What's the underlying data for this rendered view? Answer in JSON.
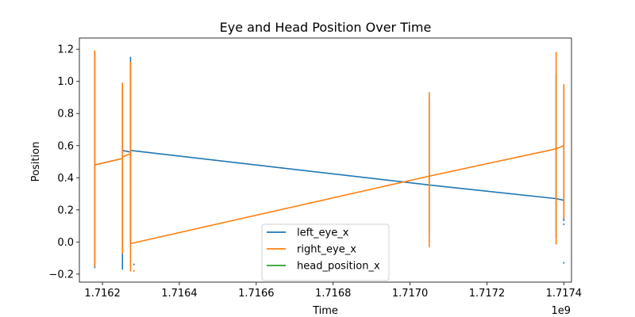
{
  "chart_data": {
    "type": "line",
    "title": "Eye and Head Position Over Time",
    "xlabel": "Time",
    "ylabel": "Position",
    "x_offset_label": "1e9",
    "xlim": [
      1.71614,
      1.71742
    ],
    "ylim": [
      -0.25,
      1.27
    ],
    "x_ticks": [
      {
        "value": 1.7162,
        "label": "1.7162"
      },
      {
        "value": 1.7164,
        "label": "1.7164"
      },
      {
        "value": 1.7166,
        "label": "1.7166"
      },
      {
        "value": 1.7168,
        "label": "1.7168"
      },
      {
        "value": 1.717,
        "label": "1.7170"
      },
      {
        "value": 1.7172,
        "label": "1.7172"
      },
      {
        "value": 1.7174,
        "label": "1.7174"
      }
    ],
    "y_ticks": [
      {
        "value": -0.2,
        "label": "−0.2"
      },
      {
        "value": 0.0,
        "label": "0.0"
      },
      {
        "value": 0.2,
        "label": "0.2"
      },
      {
        "value": 0.4,
        "label": "0.4"
      },
      {
        "value": 0.6,
        "label": "0.6"
      },
      {
        "value": 0.8,
        "label": "0.8"
      },
      {
        "value": 1.0,
        "label": "1.0"
      },
      {
        "value": 1.2,
        "label": "1.2"
      }
    ],
    "grid": false,
    "legend_position": "bottom-center",
    "series": [
      {
        "name": "left_eye_x",
        "color": "#1f77b4",
        "points": [
          [
            1.71618,
            0.48
          ],
          [
            1.71618,
            -0.16
          ],
          [
            1.71618,
            1.18
          ],
          [
            1.71618,
            -0.1
          ],
          [
            1.71618,
            0.48
          ],
          [
            1.716252,
            0.52
          ],
          [
            1.716252,
            -0.17
          ],
          [
            1.716252,
            0.98
          ],
          [
            1.716252,
            0.57
          ],
          [
            1.716273,
            0.56
          ],
          [
            1.716273,
            1.15
          ],
          [
            1.716273,
            0.0
          ],
          [
            1.716273,
            0.57
          ],
          [
            1.71705,
            0.355
          ],
          [
            1.71705,
            0.05
          ],
          [
            1.71705,
            0.88
          ],
          [
            1.71705,
            0.355
          ],
          [
            1.71738,
            0.27
          ],
          [
            1.71738,
            0.03
          ],
          [
            1.71738,
            1.05
          ],
          [
            1.71738,
            0.27
          ],
          [
            1.7174,
            0.26
          ],
          [
            1.7174,
            0.15
          ],
          [
            1.7174,
            0.97
          ],
          [
            1.7174,
            0.13
          ]
        ]
      },
      {
        "name": "right_eye_x",
        "color": "#ff7f0e",
        "points": [
          [
            1.71618,
            0.48
          ],
          [
            1.71618,
            -0.15
          ],
          [
            1.71618,
            1.19
          ],
          [
            1.71618,
            -0.08
          ],
          [
            1.71618,
            0.48
          ],
          [
            1.716252,
            0.52
          ],
          [
            1.716252,
            -0.07
          ],
          [
            1.716252,
            0.99
          ],
          [
            1.716252,
            0.53
          ],
          [
            1.716273,
            0.55
          ],
          [
            1.716273,
            1.12
          ],
          [
            1.716273,
            -0.18
          ],
          [
            1.716273,
            -0.01
          ],
          [
            1.71705,
            0.41
          ],
          [
            1.71705,
            -0.03
          ],
          [
            1.71705,
            0.93
          ],
          [
            1.71705,
            0.41
          ],
          [
            1.71738,
            0.58
          ],
          [
            1.71738,
            -0.01
          ],
          [
            1.71738,
            1.18
          ],
          [
            1.71738,
            0.58
          ],
          [
            1.7174,
            0.6
          ],
          [
            1.7174,
            0.15
          ],
          [
            1.7174,
            0.98
          ],
          [
            1.7174,
            0.17
          ]
        ]
      },
      {
        "name": "head_position_x",
        "color": "#2ca02c",
        "points": []
      }
    ],
    "stray_points": [
      {
        "series": "left_eye_x",
        "x": 1.716282,
        "y": -0.14
      },
      {
        "series": "left_eye_x",
        "x": 1.7174,
        "y": 0.11
      },
      {
        "series": "left_eye_x",
        "x": 1.7174,
        "y": -0.13
      },
      {
        "series": "right_eye_x",
        "x": 1.716282,
        "y": -0.18
      },
      {
        "series": "right_eye_x",
        "x": 1.71738,
        "y": -0.01
      }
    ]
  }
}
